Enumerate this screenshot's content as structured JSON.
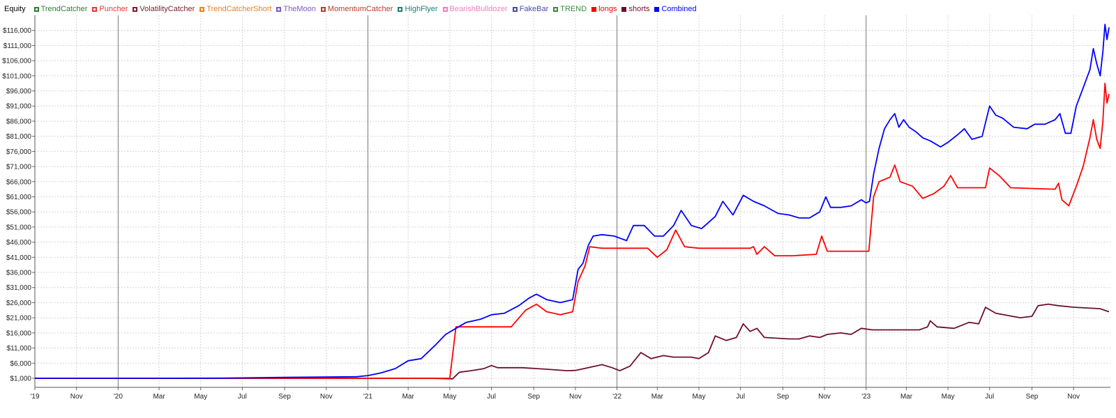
{
  "legend": {
    "title": "Equity",
    "items": [
      {
        "label": "TrendCatcher",
        "color": "#2e7d32",
        "style": "outline"
      },
      {
        "label": "Puncher",
        "color": "#e53935",
        "style": "outline"
      },
      {
        "label": "VolatilityCatcher",
        "color": "#7b1f2e",
        "style": "outline"
      },
      {
        "label": "TrendCatcherShort",
        "color": "#ef7d22",
        "style": "outline"
      },
      {
        "label": "TheMoon",
        "color": "#7e57c2",
        "style": "outline"
      },
      {
        "label": "MomentumCatcher",
        "color": "#c0392b",
        "style": "outline"
      },
      {
        "label": "HighFlyer",
        "color": "#1b7f75",
        "style": "outline"
      },
      {
        "label": "BearishBulldozer",
        "color": "#ee7fbf",
        "style": "outline"
      },
      {
        "label": "FakeBar",
        "color": "#4a4aa8",
        "style": "outline"
      },
      {
        "label": "TREND",
        "color": "#3a8a3a",
        "style": "outline"
      },
      {
        "label": "longs",
        "color": "#ff0000",
        "style": "filled"
      },
      {
        "label": "shorts",
        "color": "#6d0f2c",
        "style": "filled"
      },
      {
        "label": "Combined",
        "color": "#0000ff",
        "style": "filled"
      }
    ]
  },
  "chart_data": {
    "type": "line",
    "title": "Equity",
    "xlabel": "",
    "ylabel": "",
    "x_range": [
      "2019-09-01",
      "2023-12-25"
    ],
    "ylim": [
      -2000,
      121000
    ],
    "y_ticks": [
      "$1,000",
      "$6,000",
      "$11,000",
      "$16,000",
      "$21,000",
      "$26,000",
      "$31,000",
      "$36,000",
      "$41,000",
      "$46,000",
      "$51,000",
      "$56,000",
      "$61,000",
      "$66,000",
      "$71,000",
      "$76,000",
      "$81,000",
      "$86,000",
      "$91,000",
      "$96,000",
      "$101,000",
      "$106,000",
      "$111,000",
      "$116,000"
    ],
    "y_tick_values": [
      1000,
      6000,
      11000,
      16000,
      21000,
      26000,
      31000,
      36000,
      41000,
      46000,
      51000,
      56000,
      61000,
      66000,
      71000,
      76000,
      81000,
      86000,
      91000,
      96000,
      101000,
      106000,
      111000,
      116000
    ],
    "x_ticks": [
      {
        "label": "'19",
        "date": "2019-09-01"
      },
      {
        "label": "Nov",
        "date": "2019-11-01"
      },
      {
        "label": "'20",
        "date": "2020-01-01",
        "major": true
      },
      {
        "label": "Mar",
        "date": "2020-03-01"
      },
      {
        "label": "May",
        "date": "2020-05-01"
      },
      {
        "label": "Jul",
        "date": "2020-07-01"
      },
      {
        "label": "Sep",
        "date": "2020-09-01"
      },
      {
        "label": "Nov",
        "date": "2020-11-01"
      },
      {
        "label": "'21",
        "date": "2021-01-01",
        "major": true
      },
      {
        "label": "Mar",
        "date": "2021-03-01"
      },
      {
        "label": "May",
        "date": "2021-05-01"
      },
      {
        "label": "Jul",
        "date": "2021-07-01"
      },
      {
        "label": "Sep",
        "date": "2021-09-01"
      },
      {
        "label": "Nov",
        "date": "2021-11-01"
      },
      {
        "label": "'22",
        "date": "2022-01-01",
        "major": true
      },
      {
        "label": "Mar",
        "date": "2022-03-01"
      },
      {
        "label": "May",
        "date": "2022-05-01"
      },
      {
        "label": "Jul",
        "date": "2022-07-01"
      },
      {
        "label": "Sep",
        "date": "2022-09-01"
      },
      {
        "label": "Nov",
        "date": "2022-11-01"
      },
      {
        "label": "'23",
        "date": "2023-01-01",
        "major": true
      },
      {
        "label": "Mar",
        "date": "2023-03-01"
      },
      {
        "label": "May",
        "date": "2023-05-01"
      },
      {
        "label": "Jul",
        "date": "2023-07-01"
      },
      {
        "label": "Sep",
        "date": "2023-09-01"
      },
      {
        "label": "Nov",
        "date": "2023-11-01"
      }
    ],
    "grid": true,
    "legend_position": "top-left",
    "series": [
      {
        "name": "Combined",
        "color": "#0000ff",
        "points": [
          [
            "2019-09-01",
            1000
          ],
          [
            "2020-03-01",
            1000
          ],
          [
            "2020-06-01",
            1050
          ],
          [
            "2020-09-01",
            1300
          ],
          [
            "2020-11-01",
            1400
          ],
          [
            "2020-12-15",
            1500
          ],
          [
            "2021-01-01",
            1900
          ],
          [
            "2021-01-20",
            2800
          ],
          [
            "2021-02-10",
            4200
          ],
          [
            "2021-03-01",
            6800
          ],
          [
            "2021-03-20",
            7500
          ],
          [
            "2021-04-10",
            12000
          ],
          [
            "2021-04-25",
            15500
          ],
          [
            "2021-05-10",
            17500
          ],
          [
            "2021-05-25",
            19500
          ],
          [
            "2021-06-15",
            20500
          ],
          [
            "2021-07-01",
            22000
          ],
          [
            "2021-07-20",
            22500
          ],
          [
            "2021-08-10",
            25000
          ],
          [
            "2021-08-25",
            27500
          ],
          [
            "2021-09-05",
            28800
          ],
          [
            "2021-09-20",
            27000
          ],
          [
            "2021-10-10",
            26000
          ],
          [
            "2021-10-28",
            27000
          ],
          [
            "2021-11-05",
            37000
          ],
          [
            "2021-11-12",
            39000
          ],
          [
            "2021-11-20",
            45000
          ],
          [
            "2021-11-27",
            48000
          ],
          [
            "2021-12-10",
            48500
          ],
          [
            "2021-12-28",
            48000
          ],
          [
            "2022-01-15",
            46500
          ],
          [
            "2022-01-25",
            51500
          ],
          [
            "2022-02-10",
            51500
          ],
          [
            "2022-02-25",
            48000
          ],
          [
            "2022-03-10",
            48000
          ],
          [
            "2022-03-25",
            51500
          ],
          [
            "2022-04-05",
            56500
          ],
          [
            "2022-04-20",
            51500
          ],
          [
            "2022-05-05",
            50500
          ],
          [
            "2022-05-25",
            54500
          ],
          [
            "2022-06-05",
            59500
          ],
          [
            "2022-06-20",
            55000
          ],
          [
            "2022-07-05",
            61500
          ],
          [
            "2022-07-20",
            59500
          ],
          [
            "2022-08-05",
            58000
          ],
          [
            "2022-08-25",
            55500
          ],
          [
            "2022-09-10",
            55000
          ],
          [
            "2022-09-25",
            54000
          ],
          [
            "2022-10-10",
            54000
          ],
          [
            "2022-10-25",
            56000
          ],
          [
            "2022-11-03",
            61000
          ],
          [
            "2022-11-10",
            57500
          ],
          [
            "2022-11-25",
            57500
          ],
          [
            "2022-12-10",
            58000
          ],
          [
            "2022-12-25",
            60000
          ],
          [
            "2023-01-01",
            59000
          ],
          [
            "2023-01-06",
            59500
          ],
          [
            "2023-01-12",
            68500
          ],
          [
            "2023-01-20",
            77000
          ],
          [
            "2023-01-28",
            83500
          ],
          [
            "2023-02-05",
            86500
          ],
          [
            "2023-02-12",
            88500
          ],
          [
            "2023-02-18",
            84000
          ],
          [
            "2023-02-25",
            86500
          ],
          [
            "2023-03-05",
            84000
          ],
          [
            "2023-03-15",
            82500
          ],
          [
            "2023-03-25",
            80500
          ],
          [
            "2023-04-05",
            79500
          ],
          [
            "2023-04-20",
            77500
          ],
          [
            "2023-05-01",
            79000
          ],
          [
            "2023-05-15",
            81500
          ],
          [
            "2023-05-25",
            83500
          ],
          [
            "2023-06-05",
            80000
          ],
          [
            "2023-06-20",
            81000
          ],
          [
            "2023-07-01",
            91000
          ],
          [
            "2023-07-10",
            88000
          ],
          [
            "2023-07-20",
            87000
          ],
          [
            "2023-08-05",
            84000
          ],
          [
            "2023-08-25",
            83500
          ],
          [
            "2023-09-05",
            85000
          ],
          [
            "2023-09-20",
            85000
          ],
          [
            "2023-10-05",
            86500
          ],
          [
            "2023-10-12",
            88500
          ],
          [
            "2023-10-20",
            82000
          ],
          [
            "2023-10-28",
            82000
          ],
          [
            "2023-11-05",
            91000
          ],
          [
            "2023-11-15",
            97000
          ],
          [
            "2023-11-25",
            103000
          ],
          [
            "2023-11-30",
            110000
          ],
          [
            "2023-12-05",
            105000
          ],
          [
            "2023-12-10",
            101000
          ],
          [
            "2023-12-14",
            109000
          ],
          [
            "2023-12-17",
            118000
          ],
          [
            "2023-12-20",
            113000
          ],
          [
            "2023-12-23",
            117000
          ]
        ]
      },
      {
        "name": "longs",
        "color": "#ff0000",
        "points": [
          [
            "2019-09-01",
            1000
          ],
          [
            "2021-01-01",
            1000
          ],
          [
            "2021-05-01",
            1000
          ],
          [
            "2021-05-10",
            18000
          ],
          [
            "2021-07-30",
            18000
          ],
          [
            "2021-08-20",
            23500
          ],
          [
            "2021-09-05",
            25500
          ],
          [
            "2021-09-20",
            23000
          ],
          [
            "2021-10-10",
            22000
          ],
          [
            "2021-10-28",
            23000
          ],
          [
            "2021-11-05",
            33000
          ],
          [
            "2021-11-15",
            38000
          ],
          [
            "2021-11-22",
            44500
          ],
          [
            "2021-12-10",
            44000
          ],
          [
            "2022-02-15",
            44000
          ],
          [
            "2022-03-01",
            41000
          ],
          [
            "2022-03-15",
            43500
          ],
          [
            "2022-03-28",
            50000
          ],
          [
            "2022-04-10",
            44500
          ],
          [
            "2022-05-01",
            44000
          ],
          [
            "2022-07-15",
            44000
          ],
          [
            "2022-07-20",
            44500
          ],
          [
            "2022-07-25",
            42000
          ],
          [
            "2022-08-05",
            44500
          ],
          [
            "2022-08-20",
            41500
          ],
          [
            "2022-09-15",
            41500
          ],
          [
            "2022-10-20",
            42000
          ],
          [
            "2022-10-28",
            48000
          ],
          [
            "2022-11-05",
            43000
          ],
          [
            "2022-12-25",
            43000
          ],
          [
            "2023-01-05",
            43000
          ],
          [
            "2023-01-12",
            61000
          ],
          [
            "2023-01-20",
            66000
          ],
          [
            "2023-02-05",
            67500
          ],
          [
            "2023-02-12",
            71500
          ],
          [
            "2023-02-20",
            66000
          ],
          [
            "2023-03-10",
            64500
          ],
          [
            "2023-03-25",
            60500
          ],
          [
            "2023-04-10",
            62000
          ],
          [
            "2023-04-25",
            64500
          ],
          [
            "2023-05-05",
            68000
          ],
          [
            "2023-05-15",
            64000
          ],
          [
            "2023-06-25",
            64000
          ],
          [
            "2023-07-01",
            70500
          ],
          [
            "2023-07-15",
            68000
          ],
          [
            "2023-08-01",
            64000
          ],
          [
            "2023-10-05",
            63500
          ],
          [
            "2023-10-10",
            65500
          ],
          [
            "2023-10-15",
            60000
          ],
          [
            "2023-10-25",
            58000
          ],
          [
            "2023-11-05",
            64500
          ],
          [
            "2023-11-15",
            71000
          ],
          [
            "2023-11-25",
            80500
          ],
          [
            "2023-11-30",
            86500
          ],
          [
            "2023-12-05",
            80000
          ],
          [
            "2023-12-10",
            77000
          ],
          [
            "2023-12-14",
            86000
          ],
          [
            "2023-12-17",
            98500
          ],
          [
            "2023-12-20",
            92000
          ],
          [
            "2023-12-23",
            95000
          ]
        ]
      },
      {
        "name": "shorts",
        "color": "#6d0f2c",
        "points": [
          [
            "2019-09-01",
            1000
          ],
          [
            "2021-04-01",
            1000
          ],
          [
            "2021-05-05",
            800
          ],
          [
            "2021-05-15",
            3000
          ],
          [
            "2021-06-01",
            3500
          ],
          [
            "2021-06-20",
            4200
          ],
          [
            "2021-07-01",
            5200
          ],
          [
            "2021-07-10",
            4500
          ],
          [
            "2021-08-15",
            4500
          ],
          [
            "2021-09-20",
            4000
          ],
          [
            "2021-10-20",
            3500
          ],
          [
            "2021-11-01",
            3600
          ],
          [
            "2021-11-20",
            4500
          ],
          [
            "2021-12-10",
            5500
          ],
          [
            "2021-12-25",
            4500
          ],
          [
            "2022-01-05",
            3500
          ],
          [
            "2022-01-20",
            5000
          ],
          [
            "2022-02-05",
            9500
          ],
          [
            "2022-02-20",
            7500
          ],
          [
            "2022-03-10",
            8500
          ],
          [
            "2022-03-25",
            8000
          ],
          [
            "2022-04-20",
            8000
          ],
          [
            "2022-05-01",
            7500
          ],
          [
            "2022-05-15",
            9500
          ],
          [
            "2022-05-25",
            15000
          ],
          [
            "2022-06-10",
            13500
          ],
          [
            "2022-06-25",
            14500
          ],
          [
            "2022-07-05",
            19000
          ],
          [
            "2022-07-15",
            16500
          ],
          [
            "2022-07-25",
            17500
          ],
          [
            "2022-08-05",
            14500
          ],
          [
            "2022-09-10",
            14000
          ],
          [
            "2022-09-25",
            14000
          ],
          [
            "2022-10-10",
            15000
          ],
          [
            "2022-10-25",
            14500
          ],
          [
            "2022-11-05",
            15500
          ],
          [
            "2022-11-25",
            16000
          ],
          [
            "2022-12-10",
            15500
          ],
          [
            "2022-12-25",
            17500
          ],
          [
            "2023-01-10",
            17000
          ],
          [
            "2023-02-15",
            17000
          ],
          [
            "2023-03-20",
            17000
          ],
          [
            "2023-04-01",
            18000
          ],
          [
            "2023-04-05",
            20000
          ],
          [
            "2023-04-15",
            18000
          ],
          [
            "2023-05-10",
            17500
          ],
          [
            "2023-06-01",
            19500
          ],
          [
            "2023-06-15",
            19000
          ],
          [
            "2023-06-25",
            24500
          ],
          [
            "2023-07-10",
            22500
          ],
          [
            "2023-08-15",
            21000
          ],
          [
            "2023-09-01",
            21500
          ],
          [
            "2023-09-10",
            25000
          ],
          [
            "2023-09-25",
            25500
          ],
          [
            "2023-10-10",
            25000
          ],
          [
            "2023-11-01",
            24500
          ],
          [
            "2023-12-10",
            24000
          ],
          [
            "2023-12-23",
            23000
          ]
        ]
      }
    ]
  }
}
